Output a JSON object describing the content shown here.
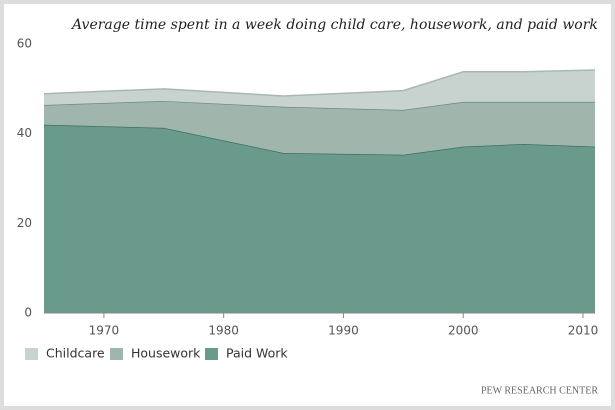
{
  "chart_data": {
    "type": "stacked-area",
    "title": "Average time spent in a week doing child care, housework, and paid work",
    "x": [
      1965,
      1975,
      1985,
      1995,
      2000,
      2005,
      2011
    ],
    "series": [
      {
        "name": "Childcare",
        "color": "#c8d3cf",
        "line_color": "#a9b7b2",
        "values": [
          2.5,
          2.7,
          2.4,
          4.3,
          6.7,
          6.7,
          7.1
        ]
      },
      {
        "name": "Housework",
        "color": "#a0b5ac",
        "line_color": "#6e8a80",
        "values": [
          4.4,
          6.0,
          10.3,
          10.0,
          10.0,
          9.4,
          10.0
        ]
      },
      {
        "name": "Paid Work",
        "color": "#6a9a8c",
        "line_color": "#3d7161",
        "values": [
          42.0,
          41.3,
          35.7,
          35.3,
          37.1,
          37.7,
          37.1
        ]
      }
    ],
    "xlim": [
      1965,
      2011
    ],
    "xticks": [
      1970,
      1980,
      1990,
      2000,
      2010
    ],
    "ylim": [
      0,
      60
    ],
    "yticks": [
      0,
      20,
      40,
      60
    ],
    "grid": false,
    "legend": "bottom-left",
    "source": "PEW RESEARCH CENTER"
  }
}
